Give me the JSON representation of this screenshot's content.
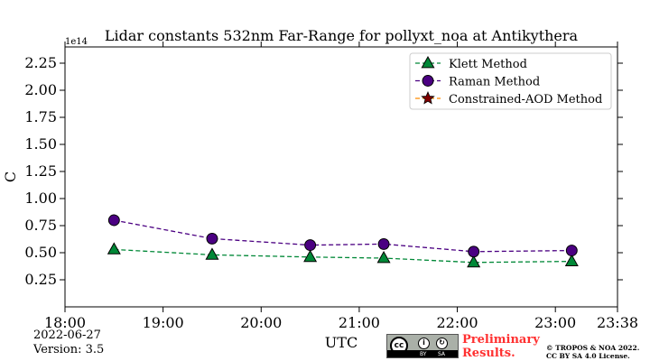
{
  "chart_data": {
    "type": "line",
    "title": "Lidar constants 532nm Far-Range for pollyxt_noa at Antikythera",
    "xlabel": "UTC",
    "ylabel": "C",
    "y_multiplier": "1e14",
    "x_ticks": [
      "18:00",
      "19:00",
      "20:00",
      "21:00",
      "22:00",
      "23:00",
      "23:38"
    ],
    "xlim": [
      "18:00",
      "23:38"
    ],
    "y_ticks": [
      "0.25",
      "0.50",
      "0.75",
      "1.00",
      "1.25",
      "1.50",
      "1.75",
      "2.00",
      "2.25"
    ],
    "ylim": [
      0.0,
      2.4
    ],
    "grid": false,
    "legend_position": "top-right",
    "series": [
      {
        "name": "Klett Method",
        "marker": "triangle",
        "color": "#008837",
        "line_color": "#008837",
        "x": [
          "18:30",
          "19:30",
          "20:30",
          "21:15",
          "22:10",
          "23:10"
        ],
        "y": [
          0.53,
          0.48,
          0.46,
          0.45,
          0.41,
          0.42
        ]
      },
      {
        "name": "Raman Method",
        "marker": "circle",
        "color": "#4b0082",
        "line_color": "#4b0082",
        "x": [
          "18:30",
          "19:30",
          "20:30",
          "21:15",
          "22:10",
          "23:10"
        ],
        "y": [
          0.8,
          0.63,
          0.57,
          0.58,
          0.51,
          0.52
        ]
      },
      {
        "name": "Constrained-AOD Method",
        "marker": "star",
        "color": "#800000",
        "line_color": "#ff8c00",
        "x": [],
        "y": []
      }
    ]
  },
  "footer": {
    "date": "2022-06-27",
    "version": "Version: 3.5",
    "preliminary_line1": "Preliminary",
    "preliminary_line2": "Results.",
    "license_line1": "© TROPOS & NOA 2022.",
    "license_line2": "CC BY SA 4.0 License.",
    "cc_logo": "cc",
    "cc_by": "BY",
    "cc_sa": "SA"
  },
  "colors": {
    "accent_red": "#ff3030"
  }
}
